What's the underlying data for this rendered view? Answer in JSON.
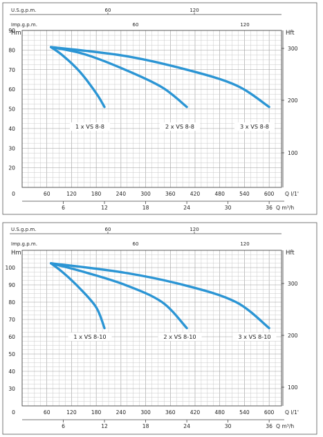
{
  "chart_data": [
    {
      "type": "line",
      "top_axis_1": {
        "label": "U.S.g.p.m.",
        "ticks": [
          "60",
          "120"
        ]
      },
      "top_axis_2": {
        "label": "Imp.g.p.m.",
        "ticks": [
          "60",
          "120"
        ]
      },
      "ylabel": "Hm",
      "ylim": [
        10,
        90
      ],
      "y_ticks": [
        "20",
        "30",
        "40",
        "50",
        "60",
        "70",
        "80",
        "90"
      ],
      "origin_label": "0",
      "y2label": "Hft",
      "y2_ticks": [
        "100",
        "200",
        "300"
      ],
      "xlabel": "Q l/1'",
      "xlim": [
        0,
        630
      ],
      "x_ticks": [
        "60",
        "120",
        "180",
        "240",
        "300",
        "360",
        "420",
        "480",
        "540",
        "600"
      ],
      "x2label": "Q m³/h",
      "x2_ticks": [
        "6",
        "12",
        "18",
        "24",
        "30",
        "36"
      ],
      "accent_color": "#2b95d4",
      "series": [
        {
          "name": "1 x VS 8-8",
          "x": [
            70,
            100,
            140,
            180,
            200
          ],
          "y": [
            81.5,
            77,
            69,
            58,
            51
          ]
        },
        {
          "name": "2 x VS 8-8",
          "x": [
            70,
            150,
            250,
            340,
            400
          ],
          "y": [
            81.5,
            78,
            70,
            61,
            51
          ]
        },
        {
          "name": "3 x VS 8-8",
          "x": [
            70,
            250,
            400,
            520,
            600
          ],
          "y": [
            81.5,
            77,
            70,
            62,
            51
          ]
        }
      ]
    },
    {
      "type": "line",
      "top_axis_1": {
        "label": "U.S.g.p.m.",
        "ticks": [
          "60",
          "120"
        ]
      },
      "top_axis_2": {
        "label": "Imp.g.p.m.",
        "ticks": [
          "60",
          "120"
        ]
      },
      "ylabel": "Hm",
      "ylim": [
        20,
        110
      ],
      "y_ticks": [
        "30",
        "40",
        "50",
        "60",
        "70",
        "80",
        "90",
        "100"
      ],
      "origin_label": "0",
      "y2label": "Hft",
      "y2_ticks": [
        "100",
        "200",
        "300"
      ],
      "xlabel": "Q l/1'",
      "xlim": [
        0,
        630
      ],
      "x_ticks": [
        "60",
        "120",
        "180",
        "240",
        "300",
        "360",
        "420",
        "480",
        "540",
        "600"
      ],
      "x2label": "Q m³/h",
      "x2_ticks": [
        "6",
        "12",
        "18",
        "24",
        "30",
        "36"
      ],
      "accent_color": "#2b95d4",
      "series": [
        {
          "name": "1 x VS 8-10",
          "x": [
            70,
            100,
            140,
            180,
            200
          ],
          "y": [
            102.5,
            97,
            88,
            77,
            65
          ]
        },
        {
          "name": "2 x VS 8-10",
          "x": [
            70,
            150,
            250,
            340,
            400
          ],
          "y": [
            102.5,
            97.5,
            90,
            80,
            65
          ]
        },
        {
          "name": "3 x VS 8-10",
          "x": [
            70,
            250,
            400,
            520,
            600
          ],
          "y": [
            102.5,
            97,
            89.5,
            80,
            65
          ]
        }
      ]
    }
  ]
}
